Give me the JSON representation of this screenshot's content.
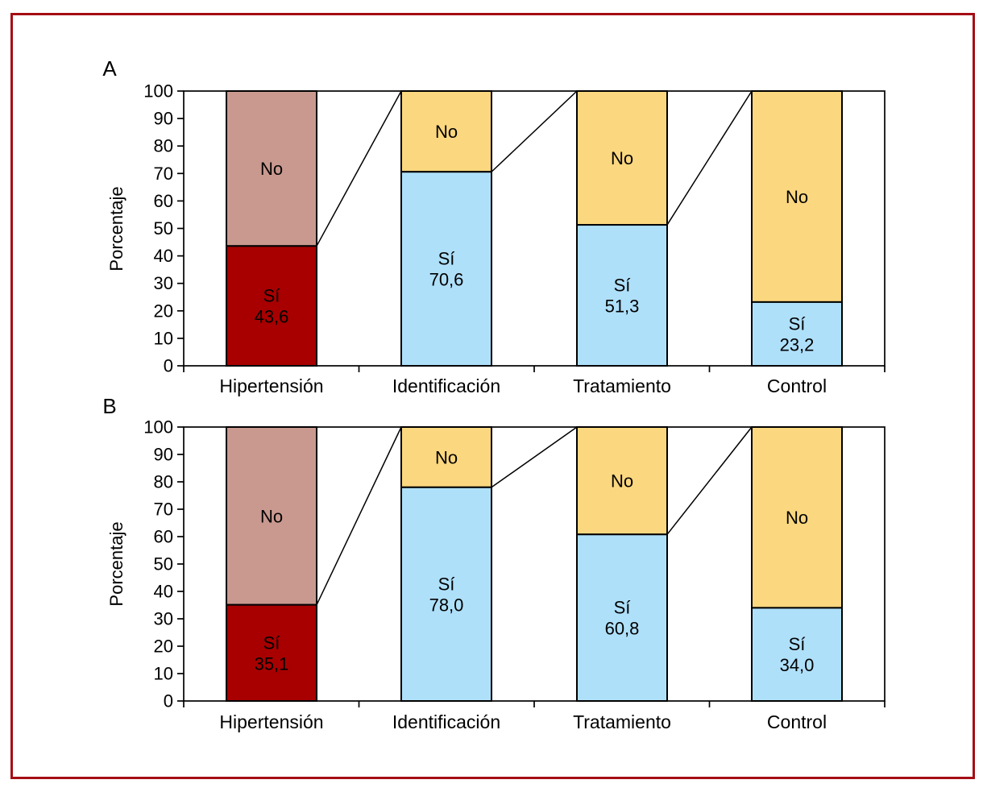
{
  "figure": {
    "border_color": "#A50D14",
    "background_color": "#FFFFFF",
    "panel_a_label": "A",
    "panel_b_label": "B"
  },
  "chart_data": [
    {
      "type": "bar",
      "stacked": true,
      "panel": "A",
      "title": "",
      "xlabel": "",
      "ylabel": "Porcentaje",
      "ylim": [
        0,
        100
      ],
      "ytick_step": 10,
      "grid": false,
      "legend": "none (segments labeled in-bar)",
      "categories": [
        "Hipertensión",
        "Identificación",
        "Tratamiento",
        "Control"
      ],
      "series": [
        {
          "name": "Sí",
          "values": [
            43.6,
            70.6,
            51.3,
            23.2
          ]
        },
        {
          "name": "No",
          "values": [
            56.4,
            29.4,
            48.7,
            76.8
          ]
        }
      ],
      "si_value_labels": [
        "43,6",
        "70,6",
        "51,3",
        "23,2"
      ],
      "si_colors": [
        "#A80000",
        "#AFE0FA",
        "#AFE0FA",
        "#AFE0FA"
      ],
      "no_colors": [
        "#C9998F",
        "#FBD77F",
        "#FBD77F",
        "#FBD77F"
      ],
      "si_label_colors": [
        "#FFFFFF",
        "#000000",
        "#000000",
        "#000000"
      ],
      "no_label_color": "#000000",
      "connector_lines": "top of each next bar connects to Sí/No split of previous bar"
    },
    {
      "type": "bar",
      "stacked": true,
      "panel": "B",
      "title": "",
      "xlabel": "",
      "ylabel": "Porcentaje",
      "ylim": [
        0,
        100
      ],
      "ytick_step": 10,
      "grid": false,
      "legend": "none (segments labeled in-bar)",
      "categories": [
        "Hipertensión",
        "Identificación",
        "Tratamiento",
        "Control"
      ],
      "series": [
        {
          "name": "Sí",
          "values": [
            35.1,
            78.0,
            60.8,
            34.0
          ]
        },
        {
          "name": "No",
          "values": [
            64.9,
            22.0,
            39.2,
            66.0
          ]
        }
      ],
      "si_value_labels": [
        "35,1",
        "78,0",
        "60,8",
        "34,0"
      ],
      "si_colors": [
        "#A80000",
        "#AFE0FA",
        "#AFE0FA",
        "#AFE0FA"
      ],
      "no_colors": [
        "#C9998F",
        "#FBD77F",
        "#FBD77F",
        "#FBD77F"
      ],
      "si_label_colors": [
        "#FFFFFF",
        "#000000",
        "#000000",
        "#000000"
      ],
      "no_label_color": "#000000",
      "connector_lines": "top of each next bar connects to Sí/No split of previous bar"
    }
  ]
}
